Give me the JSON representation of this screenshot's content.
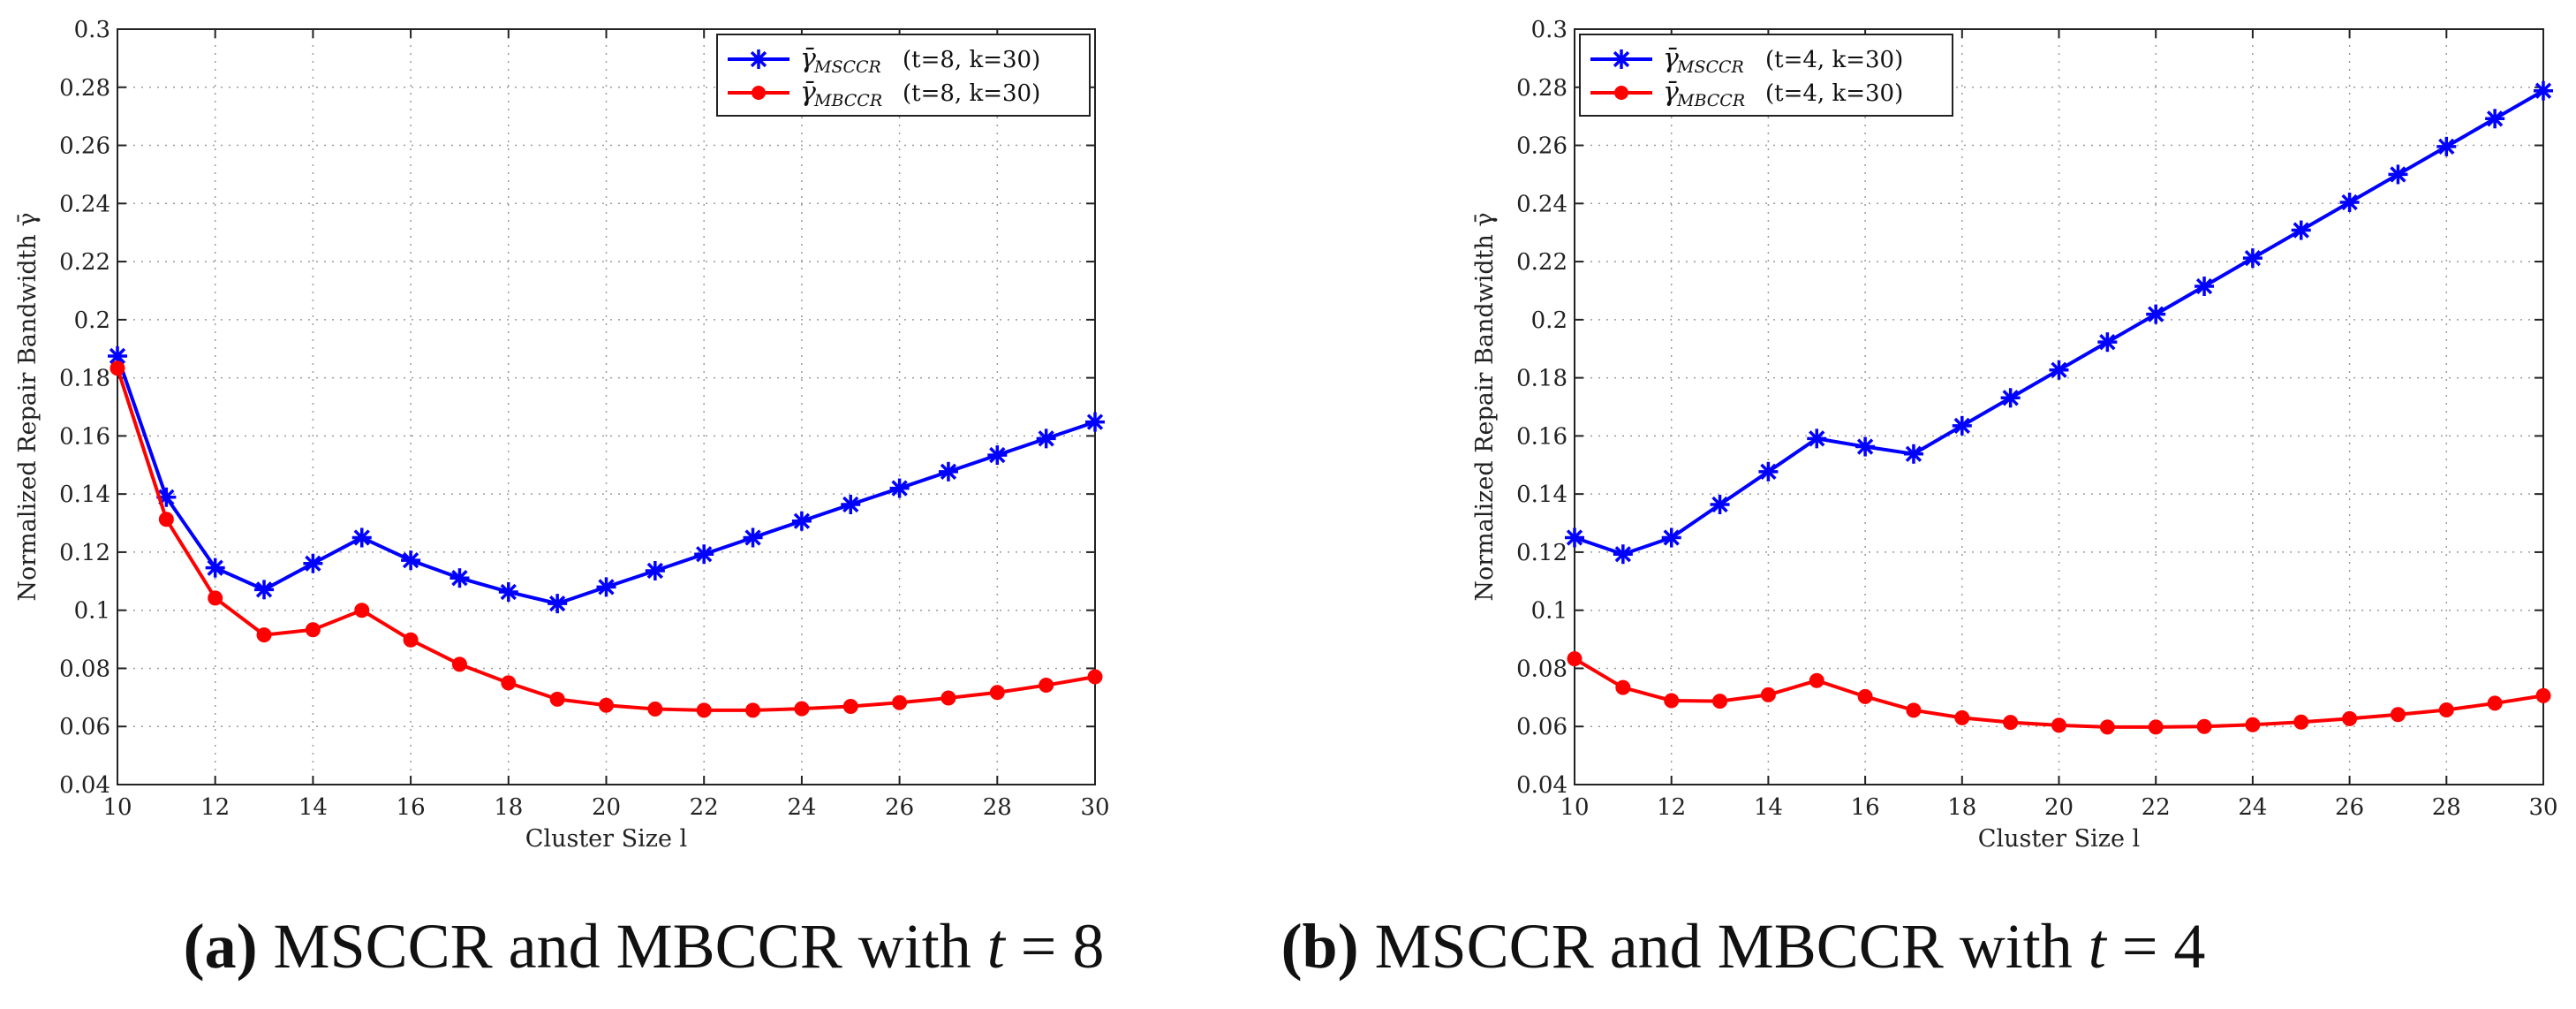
{
  "chart_data": [
    {
      "type": "line",
      "panel": "a",
      "xlabel": "Cluster Size l",
      "ylabel": "Normalized Repair Bandwidth γ̄",
      "xlim": [
        10,
        30
      ],
      "ylim": [
        0.04,
        0.3
      ],
      "xticks": [
        10,
        12,
        14,
        16,
        18,
        20,
        22,
        24,
        26,
        28,
        30
      ],
      "yticks": [
        0.04,
        0.06,
        0.08,
        0.1,
        0.12,
        0.14,
        0.16,
        0.18,
        0.2,
        0.22,
        0.24,
        0.26,
        0.28,
        0.3
      ],
      "ytick_labels": [
        "0.04",
        "0.06",
        "0.08",
        "0.1",
        "0.12",
        "0.14",
        "0.16",
        "0.18",
        "0.2",
        "0.22",
        "0.24",
        "0.26",
        "0.28",
        "0.3"
      ],
      "grid": true,
      "legend_position": "top-right",
      "x": [
        10,
        11,
        12,
        13,
        14,
        15,
        16,
        17,
        18,
        19,
        20,
        21,
        22,
        23,
        24,
        25,
        26,
        27,
        28,
        29,
        30
      ],
      "series": [
        {
          "name": "MSCCR",
          "legend_symbol": "γ̄",
          "legend_sub": "MSCCR",
          "legend_params": "(t=8, k=30)",
          "color": "#0000ff",
          "marker": "asterisk",
          "values": [
            0.1875,
            0.1389,
            0.1146,
            0.1071,
            0.1161,
            0.125,
            0.1172,
            0.1111,
            0.1063,
            0.1023,
            0.108,
            0.1136,
            0.1193,
            0.125,
            0.1307,
            0.1364,
            0.142,
            0.1477,
            0.1534,
            0.1591,
            0.1648
          ]
        },
        {
          "name": "MBCCR",
          "legend_symbol": "γ̄",
          "legend_sub": "MBCCR",
          "legend_params": "(t=8, k=30)",
          "color": "#ff0000",
          "marker": "dot",
          "values": [
            0.1833,
            0.1313,
            0.1042,
            0.0915,
            0.0933,
            0.1,
            0.0898,
            0.0814,
            0.075,
            0.0694,
            0.0673,
            0.066,
            0.0656,
            0.0656,
            0.0661,
            0.0669,
            0.0682,
            0.0698,
            0.0717,
            0.0742,
            0.0771
          ]
        }
      ]
    },
    {
      "type": "line",
      "panel": "b",
      "xlabel": "Cluster Size l",
      "ylabel": "Normalized Repair Bandwidth γ̄",
      "xlim": [
        10,
        30
      ],
      "ylim": [
        0.04,
        0.3
      ],
      "xticks": [
        10,
        12,
        14,
        16,
        18,
        20,
        22,
        24,
        26,
        28,
        30
      ],
      "yticks": [
        0.04,
        0.06,
        0.08,
        0.1,
        0.12,
        0.14,
        0.16,
        0.18,
        0.2,
        0.22,
        0.24,
        0.26,
        0.28,
        0.3
      ],
      "ytick_labels": [
        "0.04",
        "0.06",
        "0.08",
        "0.1",
        "0.12",
        "0.14",
        "0.16",
        "0.18",
        "0.2",
        "0.22",
        "0.24",
        "0.26",
        "0.28",
        "0.3"
      ],
      "grid": true,
      "legend_position": "top-left",
      "x": [
        10,
        11,
        12,
        13,
        14,
        15,
        16,
        17,
        18,
        19,
        20,
        21,
        22,
        23,
        24,
        25,
        26,
        27,
        28,
        29,
        30
      ],
      "series": [
        {
          "name": "MSCCR",
          "legend_symbol": "γ̄",
          "legend_sub": "MSCCR",
          "legend_params": "(t=4, k=30)",
          "color": "#0000ff",
          "marker": "asterisk",
          "values": [
            0.125,
            0.1193,
            0.125,
            0.1364,
            0.1477,
            0.1591,
            0.1563,
            0.1538,
            0.1635,
            0.1731,
            0.1827,
            0.1923,
            0.2019,
            0.2115,
            0.2212,
            0.2308,
            0.2404,
            0.25,
            0.2596,
            0.2692,
            0.2788
          ]
        },
        {
          "name": "MBCCR",
          "legend_symbol": "γ̄",
          "legend_sub": "MBCCR",
          "legend_params": "(t=4, k=30)",
          "color": "#ff0000",
          "marker": "dot",
          "values": [
            0.0833,
            0.0734,
            0.0689,
            0.0687,
            0.0709,
            0.0758,
            0.0703,
            0.0656,
            0.063,
            0.0614,
            0.0604,
            0.0598,
            0.0598,
            0.06,
            0.0606,
            0.0615,
            0.0627,
            0.0641,
            0.0657,
            0.068,
            0.0706
          ]
        }
      ]
    }
  ],
  "captions": [
    {
      "label": "(a)",
      "text": " MSCCR and MBCCR with ",
      "var": "t",
      "eq": " = 8"
    },
    {
      "label": "(b)",
      "text": " MSCCR and MBCCR with ",
      "var": "t",
      "eq": " = 4"
    }
  ]
}
